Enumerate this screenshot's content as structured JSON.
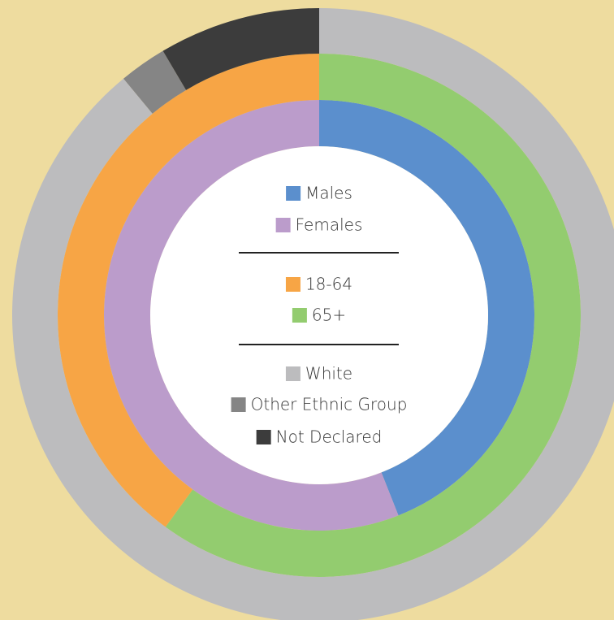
{
  "chart_data": {
    "type": "donut",
    "rings": [
      {
        "categories": [
          "Males",
          "Females"
        ],
        "values": [
          44,
          56
        ],
        "colors": [
          "#5b8fcd",
          "#bb9ccb"
        ]
      },
      {
        "categories": [
          "18-64",
          "65+"
        ],
        "values": [
          40,
          60
        ],
        "colors": [
          "#f7a545",
          "#93cc6f"
        ],
        "start_with": 1
      },
      {
        "categories": [
          "White",
          "Other Ethnic Group",
          "Not Declared"
        ],
        "values": [
          89,
          2.5,
          8.5
        ],
        "colors": [
          "#bcbcbe",
          "#858585",
          "#3c3c3c"
        ]
      }
    ]
  }
}
